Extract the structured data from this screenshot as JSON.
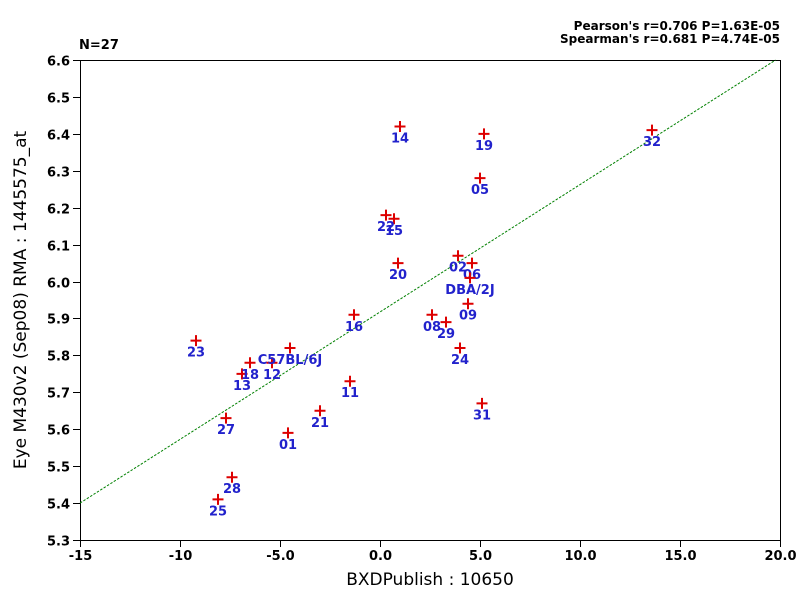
{
  "stats": {
    "n_label": "N=27",
    "pearson": "Pearson's r=0.706 P=1.63E-05",
    "spearman": "Spearman's r=0.681 P=4.74E-05"
  },
  "colors": {
    "marker": "#dd0000",
    "point_label": "#2222cc",
    "regression_line": "#008000",
    "axis": "#000000",
    "background": "#ffffff"
  },
  "chart_data": {
    "type": "scatter",
    "title": "",
    "xlabel": "BXDPublish : 10650",
    "ylabel": "Eye M430v2 (Sep08) RMA : 1445575_at",
    "xlim": [
      -15,
      20
    ],
    "ylim": [
      5.3,
      6.6
    ],
    "grid": false,
    "x_ticks": {
      "values": [
        -15,
        -10,
        -5,
        0,
        5,
        10,
        15,
        20
      ],
      "labels": [
        "-15",
        "-10",
        "-5.0",
        "0.0",
        "5.0",
        "10.0",
        "15.0",
        "20.0"
      ]
    },
    "y_ticks": {
      "values": [
        5.3,
        5.4,
        5.5,
        5.6,
        5.7,
        5.8,
        5.9,
        6.0,
        6.1,
        6.2,
        6.3,
        6.4,
        6.5,
        6.6
      ],
      "labels": [
        "5.3",
        "5.4",
        "5.5",
        "5.6",
        "5.7",
        "5.8",
        "5.9",
        "6.0",
        "6.1",
        "6.2",
        "6.3",
        "6.4",
        "6.5",
        "6.6"
      ]
    },
    "regression_line": {
      "x1": -15,
      "y1": 5.4,
      "x2": 19.78,
      "y2": 6.6
    },
    "points": [
      {
        "label": "01",
        "x": -4.6,
        "y": 5.59
      },
      {
        "label": "02",
        "x": 3.9,
        "y": 6.07
      },
      {
        "label": "05",
        "x": 5.0,
        "y": 6.28
      },
      {
        "label": "06",
        "x": 4.6,
        "y": 6.05
      },
      {
        "label": "08",
        "x": 2.6,
        "y": 5.91
      },
      {
        "label": "09",
        "x": 4.4,
        "y": 5.94
      },
      {
        "label": "11",
        "x": -1.5,
        "y": 5.73
      },
      {
        "label": "12",
        "x": -5.4,
        "y": 5.78
      },
      {
        "label": "13",
        "x": -6.9,
        "y": 5.75
      },
      {
        "label": "14",
        "x": 1.0,
        "y": 6.42
      },
      {
        "label": "15",
        "x": 0.7,
        "y": 6.17
      },
      {
        "label": "16",
        "x": -1.3,
        "y": 5.91
      },
      {
        "label": "18",
        "x": -6.5,
        "y": 5.78
      },
      {
        "label": "19",
        "x": 5.2,
        "y": 6.4
      },
      {
        "label": "20",
        "x": 0.9,
        "y": 6.05
      },
      {
        "label": "21",
        "x": -3.0,
        "y": 5.65
      },
      {
        "label": "22",
        "x": 0.3,
        "y": 6.18
      },
      {
        "label": "23",
        "x": -9.2,
        "y": 5.84
      },
      {
        "label": "24",
        "x": 4.0,
        "y": 5.82
      },
      {
        "label": "25",
        "x": -8.1,
        "y": 5.41
      },
      {
        "label": "27",
        "x": -7.7,
        "y": 5.63
      },
      {
        "label": "28",
        "x": -7.4,
        "y": 5.47
      },
      {
        "label": "29",
        "x": 3.3,
        "y": 5.89
      },
      {
        "label": "31",
        "x": 5.1,
        "y": 5.67
      },
      {
        "label": "32",
        "x": 13.6,
        "y": 6.41
      },
      {
        "label": "C57BL/6J",
        "x": -4.5,
        "y": 5.82
      },
      {
        "label": "DBA/2J",
        "x": 4.5,
        "y": 6.01
      }
    ]
  }
}
